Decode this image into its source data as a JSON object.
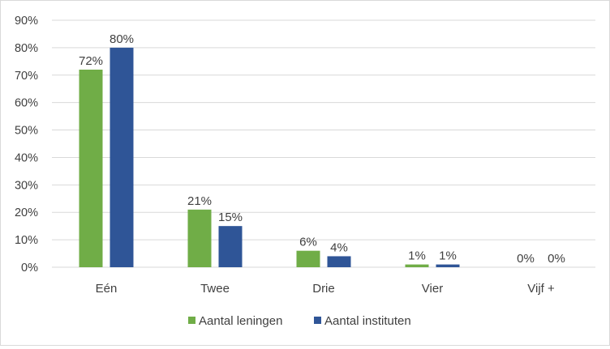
{
  "chart_data": {
    "type": "bar",
    "categories": [
      "Eén",
      "Twee",
      "Drie",
      "Vier",
      "Vijf +"
    ],
    "series": [
      {
        "name": "Aantal leningen",
        "values": [
          72,
          21,
          6,
          1,
          0
        ],
        "labels": [
          "72%",
          "21%",
          "6%",
          "1%",
          "0%"
        ],
        "color": "#70ad47"
      },
      {
        "name": "Aantal instituten",
        "values": [
          80,
          15,
          4,
          1,
          0
        ],
        "labels": [
          "80%",
          "15%",
          "4%",
          "1%",
          "0%"
        ],
        "color": "#2f5597"
      }
    ],
    "ylim": [
      0,
      90
    ],
    "yticks": [
      0,
      10,
      20,
      30,
      40,
      50,
      60,
      70,
      80,
      90
    ],
    "ytick_labels": [
      "0%",
      "10%",
      "20%",
      "30%",
      "40%",
      "50%",
      "60%",
      "70%",
      "80%",
      "90%"
    ],
    "grid": true,
    "gridline_color": "#d9d9d9",
    "legend_position": "bottom",
    "title": "",
    "xlabel": "",
    "ylabel": ""
  }
}
